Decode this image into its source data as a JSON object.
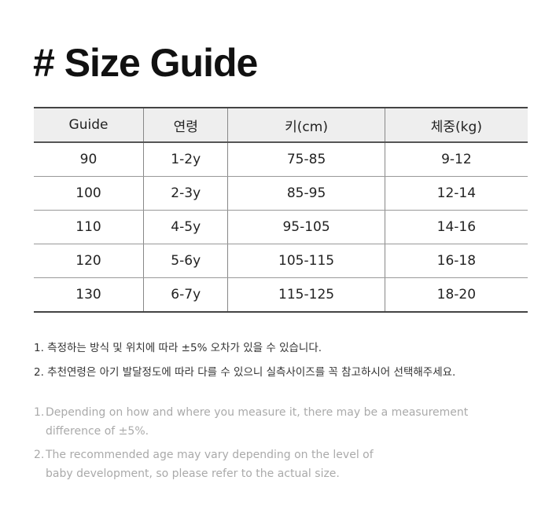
{
  "title": "# Size Guide",
  "table": {
    "headers": [
      "Guide",
      "연령",
      "키(cm)",
      "체중(kg)"
    ],
    "rows": [
      [
        "90",
        "1-2y",
        "75-85",
        "9-12"
      ],
      [
        "100",
        "2-3y",
        "85-95",
        "12-14"
      ],
      [
        "110",
        "4-5y",
        "95-105",
        "14-16"
      ],
      [
        "120",
        "5-6y",
        "105-115",
        "16-18"
      ],
      [
        "130",
        "6-7y",
        "115-125",
        "18-20"
      ]
    ]
  },
  "notes_ko": [
    "1.  측정하는 방식 및 위치에 따라 ±5% 오차가 있을 수 있습니다.",
    "2. 추천연령은 아기 발달정도에 따라 다를 수 있으니 실측사이즈를 꼭 참고하시어 선택해주세요."
  ],
  "notes_en": [
    {
      "num": "1.",
      "text": "Depending on how and where you measure it, there may be a measurement difference of ±5%."
    },
    {
      "num": "2.",
      "text": "The recommended age may vary depending on the level of baby development, so please refer to the actual size."
    }
  ]
}
